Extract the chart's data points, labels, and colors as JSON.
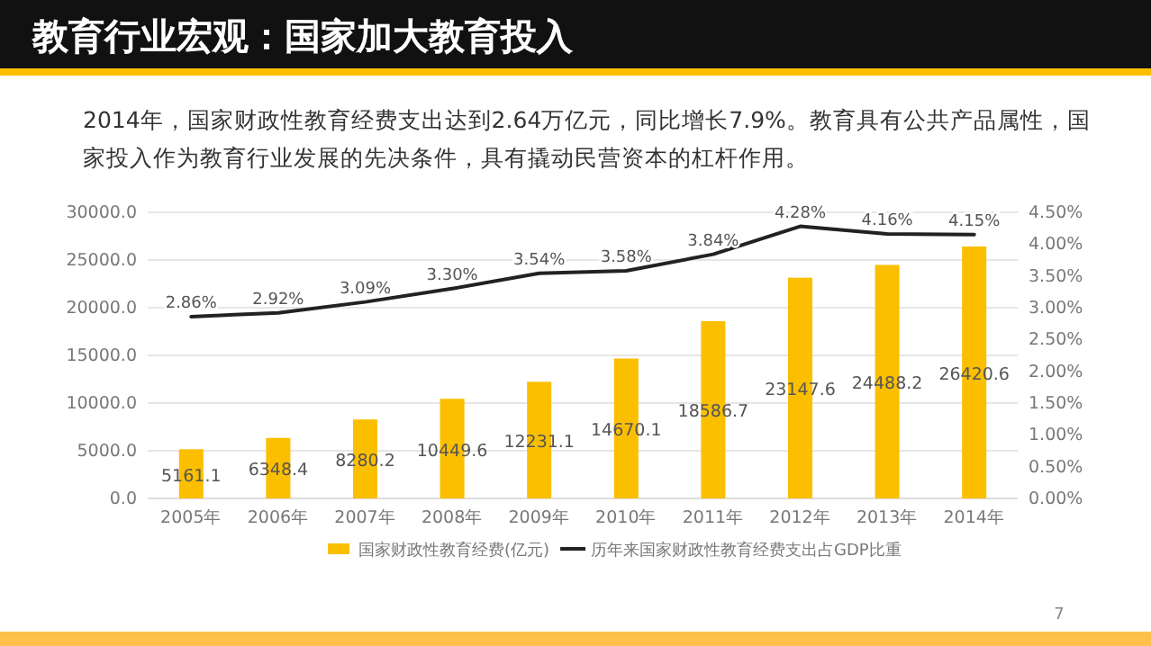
{
  "chart_data": {
    "type": "bar",
    "title": "教育行业宏观：国家加大教育投入",
    "subtitle": "2014年，国家财政性教育经费支出达到2.64万亿元，同比增长7.9%。教育具有公共产品属性，国家投入作为教育行业发展的先决条件，具有撬动民营资本的杠杆作用。",
    "categories": [
      "2005年",
      "2006年",
      "2007年",
      "2008年",
      "2009年",
      "2010年",
      "2011年",
      "2012年",
      "2013年",
      "2014年"
    ],
    "series": [
      {
        "name": "国家财政性教育经费(亿元)",
        "color": "#fbbf00",
        "values": [
          5161.1,
          6348.4,
          8280.2,
          10449.6,
          12231.1,
          14670.1,
          18586.7,
          23147.6,
          24488.2,
          26420.6
        ],
        "value_labels": [
          "5161.1",
          "6348.4",
          "8280.2",
          "10449.6",
          "12231.1",
          "14670.1",
          "18586.7",
          "23147.6",
          "24488.2",
          "26420.6"
        ]
      },
      {
        "name": "历年来国家财政性教育经费支出占GDP比重",
        "type": "line",
        "axis": "y2",
        "color": "#222222",
        "values": [
          2.86,
          2.92,
          3.09,
          3.3,
          3.54,
          3.58,
          3.84,
          4.28,
          4.16,
          4.15
        ],
        "value_labels": [
          "2.86%",
          "2.92%",
          "3.09%",
          "3.30%",
          "3.54%",
          "3.58%",
          "3.84%",
          "4.28%",
          "4.16%",
          "4.15%"
        ]
      }
    ],
    "ylim": [
      0,
      30000
    ],
    "yticks": [
      {
        "value": 0,
        "label": "0.0"
      },
      {
        "value": 5000,
        "label": "5000.0"
      },
      {
        "value": 10000,
        "label": "10000.0"
      },
      {
        "value": 15000,
        "label": "15000.0"
      },
      {
        "value": 20000,
        "label": "20000.0"
      },
      {
        "value": 25000,
        "label": "25000.0"
      },
      {
        "value": 30000,
        "label": "30000.0"
      }
    ],
    "y2lim": [
      0,
      4.5
    ],
    "y2ticks": [
      {
        "value": 0,
        "label": "0.00%"
      },
      {
        "value": 0.5,
        "label": "0.50%"
      },
      {
        "value": 1,
        "label": "1.00%"
      },
      {
        "value": 1.5,
        "label": "1.50%"
      },
      {
        "value": 2,
        "label": "2.00%"
      },
      {
        "value": 2.5,
        "label": "2.50%"
      },
      {
        "value": 3,
        "label": "3.00%"
      },
      {
        "value": 3.5,
        "label": "3.50%"
      },
      {
        "value": 4,
        "label": "4.00%"
      },
      {
        "value": 4.5,
        "label": "4.50%"
      }
    ],
    "grid": "y",
    "legend": "bottom",
    "marker": "none",
    "line_style": "solid",
    "annotations": [
      "7"
    ]
  }
}
